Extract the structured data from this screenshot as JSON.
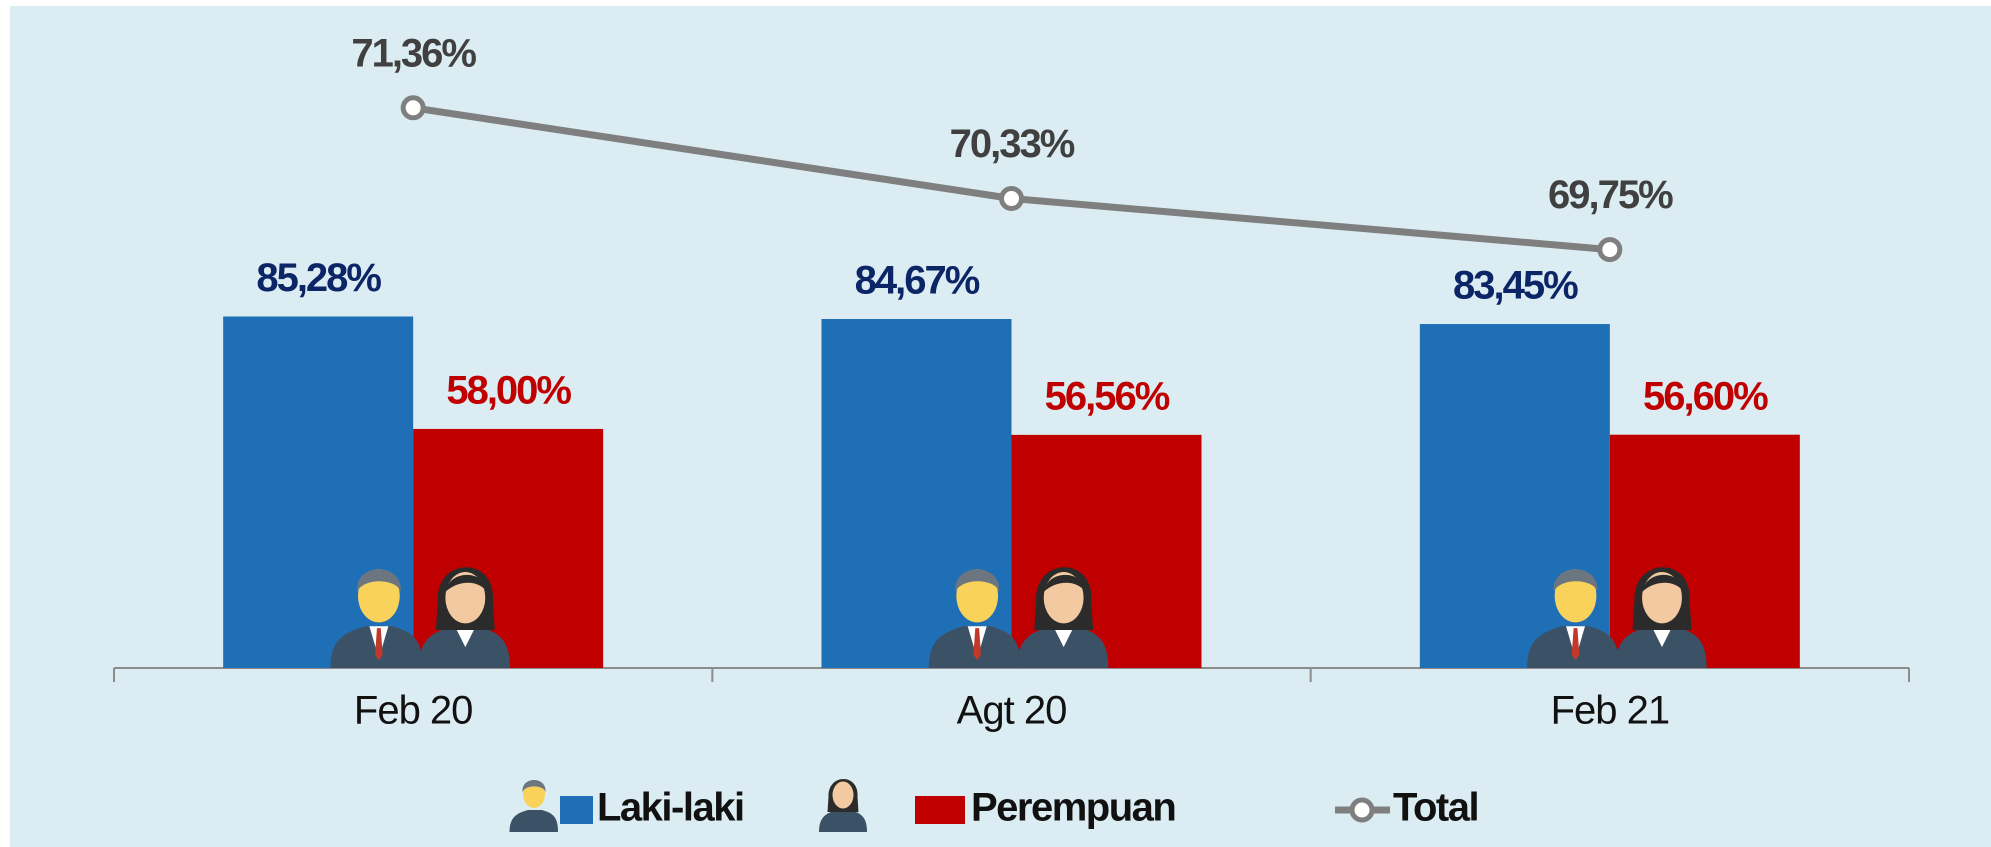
{
  "chart_data": {
    "type": "bar",
    "categories": [
      "Feb 20",
      "Agt 20",
      "Feb 21"
    ],
    "series": [
      {
        "name": "Laki-laki",
        "color": "#1f6fb6",
        "label_color": "#0b2566",
        "values": [
          85.28,
          84.67,
          83.45
        ],
        "value_labels": [
          "85,28%",
          "84,67%",
          "83,45%"
        ]
      },
      {
        "name": "Perempuan",
        "color": "#c00000",
        "label_color": "#c00000",
        "values": [
          58.0,
          56.56,
          56.6
        ],
        "value_labels": [
          "58,00%",
          "56,56%",
          "56,60%"
        ]
      },
      {
        "name": "Total",
        "type": "line",
        "axis": "y2",
        "color": "#7f7f7f",
        "label_color": "#404040",
        "values": [
          71.36,
          70.33,
          69.75
        ],
        "value_labels": [
          "71,36%",
          "70,33%",
          "69,75%"
        ]
      }
    ],
    "ylim": [
      0,
      156
    ],
    "y2lim": [
      65,
      72.3
    ]
  }
}
